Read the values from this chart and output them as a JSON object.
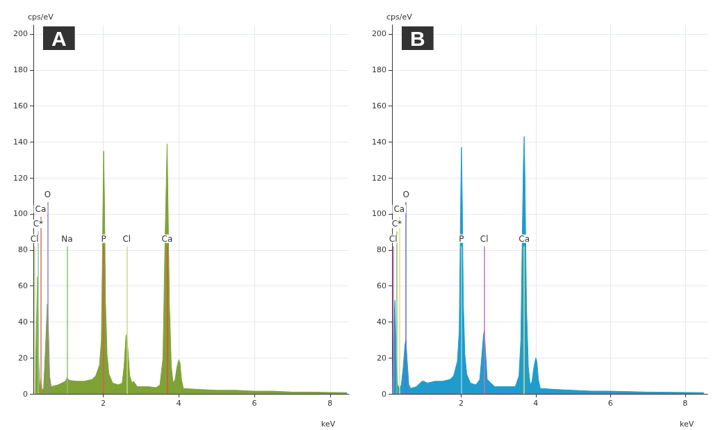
{
  "chart_data": [
    {
      "type": "area",
      "title": "A",
      "ylabel": "cps/eV",
      "xlabel": "keV",
      "color": "#7fa236",
      "xlim": [
        0.15,
        8.5
      ],
      "ylim": [
        0,
        205
      ],
      "xticks": [
        2,
        4,
        6,
        8
      ],
      "yticks": [
        0,
        20,
        40,
        60,
        80,
        100,
        120,
        140,
        160,
        180,
        200
      ],
      "grid": true,
      "x": [
        0.2,
        0.23,
        0.26,
        0.29,
        0.32,
        0.35,
        0.38,
        0.42,
        0.46,
        0.5,
        0.52,
        0.55,
        0.58,
        0.62,
        0.8,
        1.0,
        1.04,
        1.1,
        1.3,
        1.5,
        1.7,
        1.8,
        1.9,
        1.95,
        1.98,
        2.0,
        2.01,
        2.03,
        2.06,
        2.1,
        2.15,
        2.25,
        2.4,
        2.5,
        2.55,
        2.6,
        2.62,
        2.65,
        2.7,
        2.76,
        2.8,
        2.9,
        3.2,
        3.4,
        3.5,
        3.58,
        3.63,
        3.67,
        3.69,
        3.71,
        3.75,
        3.8,
        3.85,
        3.9,
        3.95,
        4.0,
        4.03,
        4.07,
        4.12,
        4.5,
        5,
        5.5,
        6,
        6.5,
        7,
        7.5,
        8,
        8.45
      ],
      "values": [
        0,
        35,
        65,
        20,
        3,
        8,
        2,
        3,
        20,
        40,
        50,
        35,
        10,
        4,
        5,
        7,
        9,
        7.5,
        7,
        7,
        8,
        10,
        16,
        30,
        80,
        120,
        135,
        110,
        50,
        22,
        11,
        6,
        5,
        6,
        15,
        32,
        33,
        25,
        10,
        6,
        7,
        4,
        4,
        3.5,
        5,
        20,
        80,
        120,
        139,
        110,
        50,
        15,
        6,
        8,
        15,
        19,
        17,
        8,
        3,
        2.5,
        2,
        2,
        1.5,
        1.5,
        1,
        1,
        0.8,
        0.7
      ],
      "ref_lines": [
        {
          "axis": "x",
          "value": 0.18,
          "label": "Cl",
          "color": "#c8dc8c"
        },
        {
          "axis": "x",
          "value": 0.277,
          "label": "C*",
          "color": "#7ccfa0"
        },
        {
          "axis": "x",
          "value": 0.341,
          "label": "Ca",
          "color": "#ee6a5e"
        },
        {
          "axis": "x",
          "value": 0.525,
          "label": "O",
          "color": "#9a7ed0"
        },
        {
          "axis": "x",
          "value": 1.04,
          "label": "Na",
          "color": "#86c46a"
        },
        {
          "axis": "x",
          "value": 2.01,
          "label": "P",
          "color": "#e0584a"
        },
        {
          "axis": "x",
          "value": 2.62,
          "label": "Cl",
          "color": "#c8dc8c"
        },
        {
          "axis": "x",
          "value": 3.69,
          "label": "Ca",
          "color": "#e84a3a"
        }
      ]
    },
    {
      "type": "area",
      "title": "B",
      "ylabel": "cps/eV",
      "xlabel": "keV",
      "color": "#1f9ccc",
      "xlim": [
        0.15,
        8.6
      ],
      "ylim": [
        0,
        205
      ],
      "xticks": [
        2,
        4,
        6,
        8
      ],
      "yticks": [
        0,
        20,
        40,
        60,
        80,
        100,
        120,
        140,
        160,
        180,
        200
      ],
      "grid": true,
      "x": [
        0.16,
        0.18,
        0.2,
        0.23,
        0.26,
        0.3,
        0.35,
        0.4,
        0.45,
        0.5,
        0.52,
        0.55,
        0.6,
        0.65,
        0.8,
        0.95,
        1.0,
        1.1,
        1.3,
        1.5,
        1.7,
        1.8,
        1.9,
        1.95,
        1.98,
        2.0,
        2.01,
        2.03,
        2.06,
        2.1,
        2.15,
        2.25,
        2.4,
        2.5,
        2.55,
        2.6,
        2.62,
        2.65,
        2.7,
        2.8,
        2.9,
        3.2,
        3.45,
        3.55,
        3.6,
        3.64,
        3.67,
        3.69,
        3.71,
        3.75,
        3.8,
        3.85,
        3.9,
        3.95,
        4.0,
        4.03,
        4.07,
        4.12,
        4.5,
        5,
        5.5,
        6,
        7,
        8,
        8.5
      ],
      "values": [
        0,
        25,
        40,
        52,
        20,
        5,
        3,
        5,
        15,
        28,
        30,
        20,
        5,
        3,
        4,
        7,
        7,
        6,
        7,
        7,
        8,
        10,
        18,
        35,
        90,
        125,
        137,
        110,
        50,
        22,
        11,
        6,
        5,
        8,
        20,
        33,
        35,
        25,
        8,
        6,
        4,
        4,
        4,
        10,
        30,
        90,
        130,
        143,
        120,
        50,
        15,
        5,
        7,
        15,
        20,
        18,
        8,
        3,
        2.5,
        2,
        1.5,
        1.5,
        1,
        0.8,
        0.7
      ],
      "ref_lines": [
        {
          "axis": "x",
          "value": 0.18,
          "label": "Cl",
          "color": "#c86cc0"
        },
        {
          "axis": "x",
          "value": 0.277,
          "label": "C*",
          "color": "#80c078"
        },
        {
          "axis": "x",
          "value": 0.341,
          "label": "Ca",
          "color": "#e8e070"
        },
        {
          "axis": "x",
          "value": 0.525,
          "label": "O",
          "color": "#6a6ad0"
        },
        {
          "axis": "x",
          "value": 2.01,
          "label": "P",
          "color": "#8ad4e0"
        },
        {
          "axis": "x",
          "value": 2.62,
          "label": "Cl",
          "color": "#c86cc0"
        },
        {
          "axis": "x",
          "value": 3.69,
          "label": "Ca",
          "color": "#e8e070"
        }
      ]
    }
  ]
}
